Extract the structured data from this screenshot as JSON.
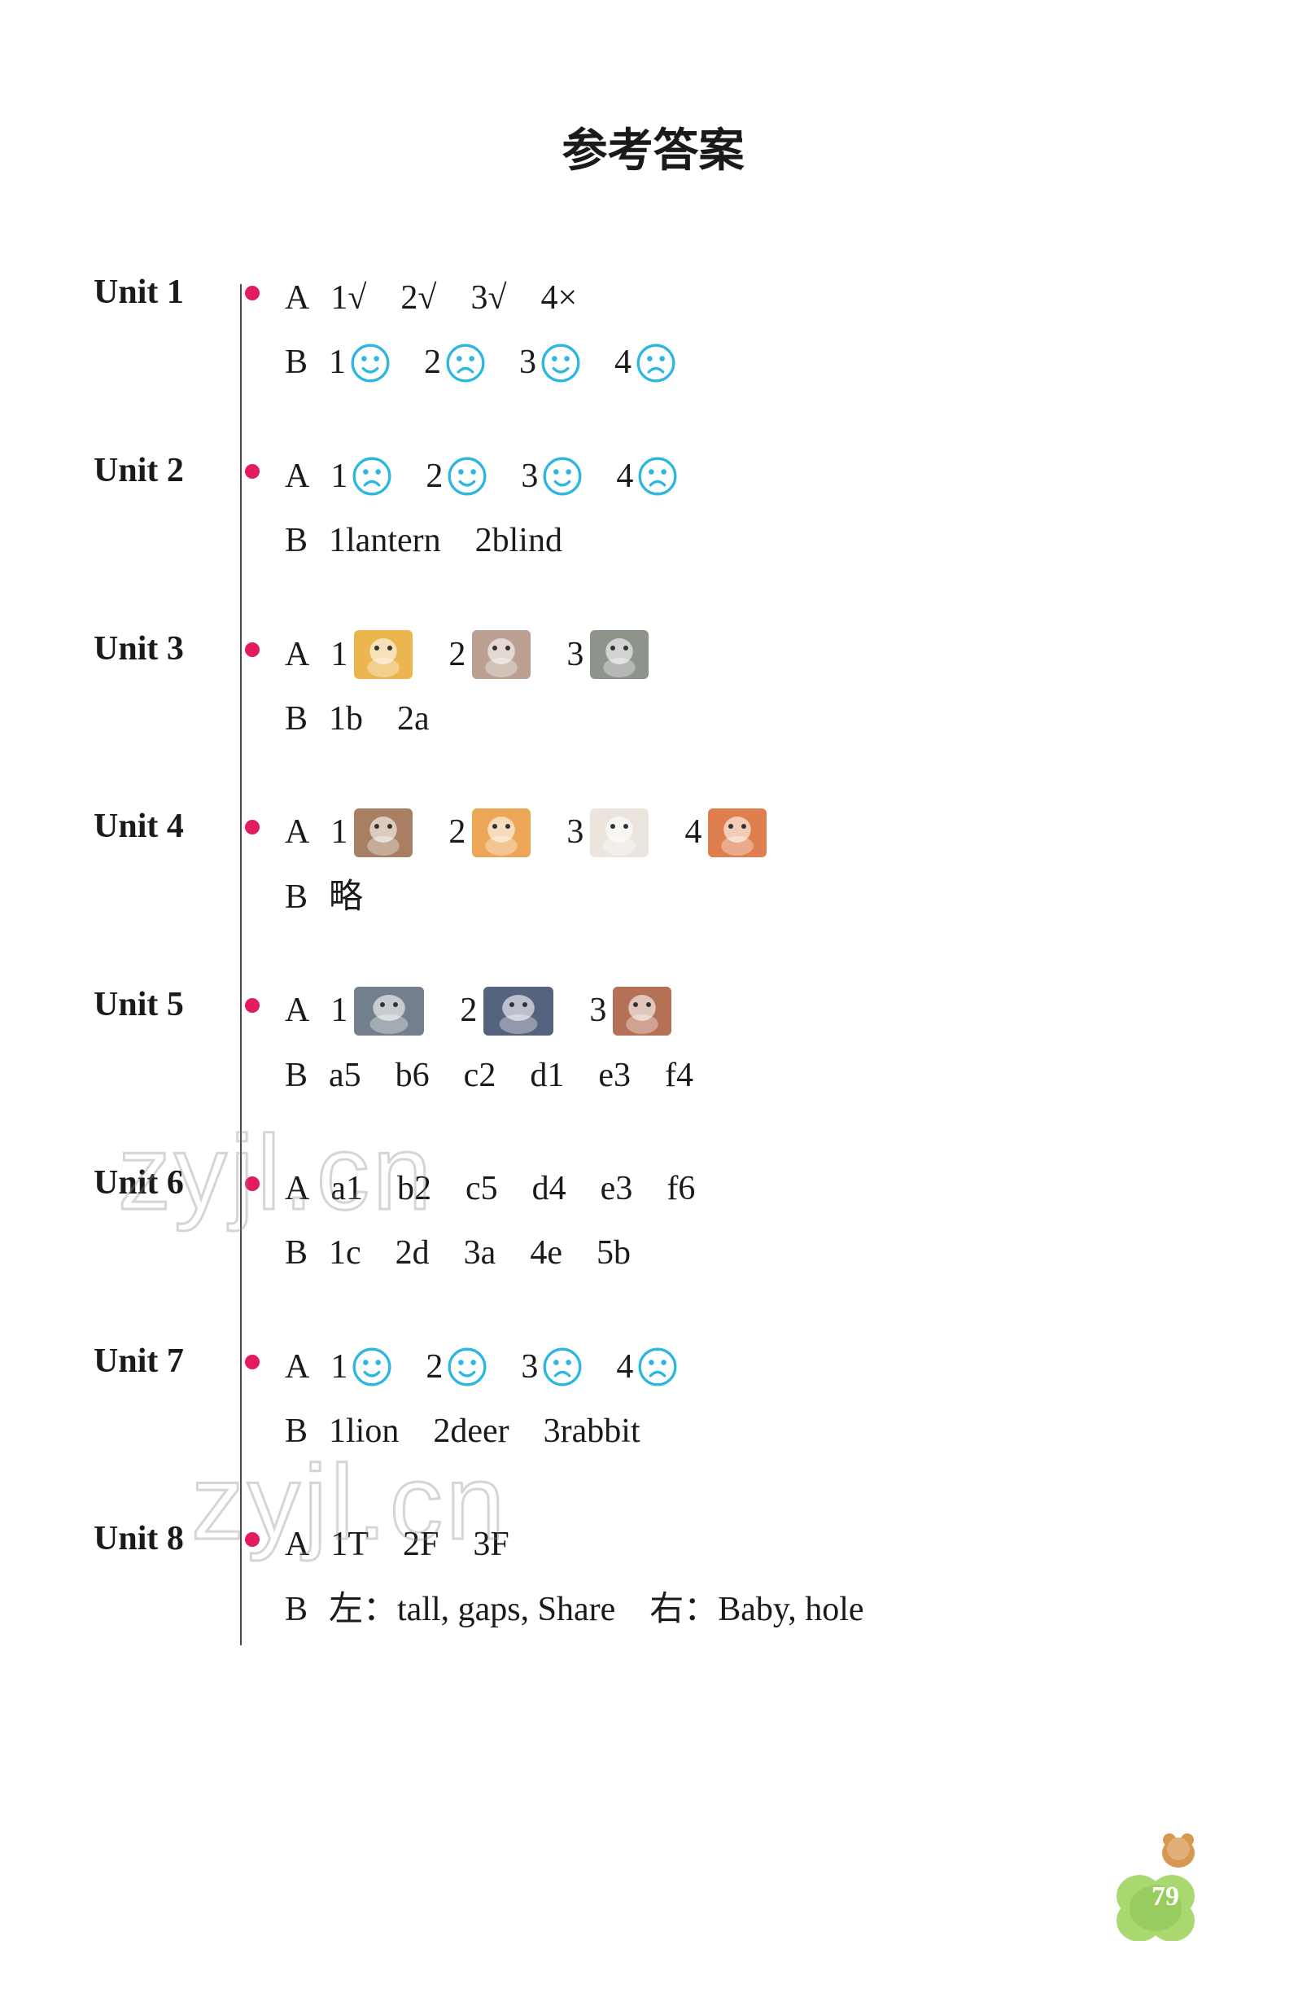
{
  "title": "参考答案",
  "page_number": "79",
  "watermark_text": "zyjl.cn",
  "icon_colors": {
    "smiley_happy": "#2db6e0",
    "smiley_sad": "#2db6e0",
    "bullet": "#e31b5f",
    "clover": "#a8d86f",
    "bear": "#d89850"
  },
  "animal_colors": {
    "cat": "#e8a830",
    "mice": "#b09080",
    "mouse_dress": "#7a8078",
    "donkey": "#9a6848",
    "lion": "#e89838",
    "sheep": "#e8e0d8",
    "fox": "#d8682e",
    "well": "#5a6878",
    "moon": "#384868",
    "monkey": "#a85838"
  },
  "units": [
    {
      "label": "Unit 1",
      "lines": [
        {
          "prefix": "A",
          "items": [
            {
              "n": "1",
              "v": "√"
            },
            {
              "n": "2",
              "v": "√"
            },
            {
              "n": "3",
              "v": "√"
            },
            {
              "n": "4",
              "v": "×"
            }
          ]
        },
        {
          "prefix": "B",
          "items": [
            {
              "n": "1",
              "face": "happy"
            },
            {
              "n": "2",
              "face": "sad"
            },
            {
              "n": "3",
              "face": "happy"
            },
            {
              "n": "4",
              "face": "sad"
            }
          ]
        }
      ]
    },
    {
      "label": "Unit 2",
      "lines": [
        {
          "prefix": "A",
          "items": [
            {
              "n": "1",
              "face": "sad"
            },
            {
              "n": "2",
              "face": "happy"
            },
            {
              "n": "3",
              "face": "happy"
            },
            {
              "n": "4",
              "face": "sad"
            }
          ]
        },
        {
          "prefix": "B",
          "items": [
            {
              "n": "1",
              "v": "lantern"
            },
            {
              "n": "2",
              "v": "blind"
            }
          ]
        }
      ]
    },
    {
      "label": "Unit 3",
      "lines": [
        {
          "prefix": "A",
          "items": [
            {
              "n": "1",
              "animal": "cat"
            },
            {
              "n": "2",
              "animal": "mice"
            },
            {
              "n": "3",
              "animal": "mouse_dress"
            }
          ]
        },
        {
          "prefix": "B",
          "items": [
            {
              "n": "1",
              "v": "b"
            },
            {
              "n": "2",
              "v": "a"
            }
          ]
        }
      ]
    },
    {
      "label": "Unit 4",
      "lines": [
        {
          "prefix": "A",
          "items": [
            {
              "n": "1",
              "animal": "donkey"
            },
            {
              "n": "2",
              "animal": "lion"
            },
            {
              "n": "3",
              "animal": "sheep"
            },
            {
              "n": "4",
              "animal": "fox"
            }
          ]
        },
        {
          "prefix": "B",
          "items": [
            {
              "v": "略"
            }
          ]
        }
      ]
    },
    {
      "label": "Unit 5",
      "lines": [
        {
          "prefix": "A",
          "items": [
            {
              "n": "1",
              "animal": "well",
              "wide": true
            },
            {
              "n": "2",
              "animal": "moon",
              "wide": true
            },
            {
              "n": "3",
              "animal": "monkey"
            }
          ]
        },
        {
          "prefix": "B",
          "items": [
            {
              "n": "a",
              "v": "5"
            },
            {
              "n": "b",
              "v": "6"
            },
            {
              "n": "c",
              "v": "2"
            },
            {
              "n": "d",
              "v": "1"
            },
            {
              "n": "e",
              "v": "3"
            },
            {
              "n": "f",
              "v": "4"
            }
          ]
        }
      ]
    },
    {
      "label": "Unit 6",
      "lines": [
        {
          "prefix": "A",
          "items": [
            {
              "n": "a",
              "v": "1"
            },
            {
              "n": "b",
              "v": "2"
            },
            {
              "n": "c",
              "v": "5"
            },
            {
              "n": "d",
              "v": "4"
            },
            {
              "n": "e",
              "v": "3"
            },
            {
              "n": "f",
              "v": "6"
            }
          ]
        },
        {
          "prefix": "B",
          "items": [
            {
              "n": "1",
              "v": "c"
            },
            {
              "n": "2",
              "v": "d"
            },
            {
              "n": "3",
              "v": "a"
            },
            {
              "n": "4",
              "v": "e"
            },
            {
              "n": "5",
              "v": "b"
            }
          ]
        }
      ]
    },
    {
      "label": "Unit 7",
      "lines": [
        {
          "prefix": "A",
          "items": [
            {
              "n": "1",
              "face": "happy"
            },
            {
              "n": "2",
              "face": "happy"
            },
            {
              "n": "3",
              "face": "sad"
            },
            {
              "n": "4",
              "face": "sad"
            }
          ]
        },
        {
          "prefix": "B",
          "items": [
            {
              "n": "1",
              "v": "lion"
            },
            {
              "n": "2",
              "v": "deer"
            },
            {
              "n": "3",
              "v": "rabbit"
            }
          ]
        }
      ]
    },
    {
      "label": "Unit 8",
      "lines": [
        {
          "prefix": "A",
          "items": [
            {
              "n": "1",
              "v": "T"
            },
            {
              "n": "2",
              "v": "F"
            },
            {
              "n": "3",
              "v": "F"
            }
          ]
        },
        {
          "prefix": "B",
          "items": [
            {
              "v": "左：tall, gaps, Share　右：Baby, hole"
            }
          ]
        }
      ]
    }
  ]
}
